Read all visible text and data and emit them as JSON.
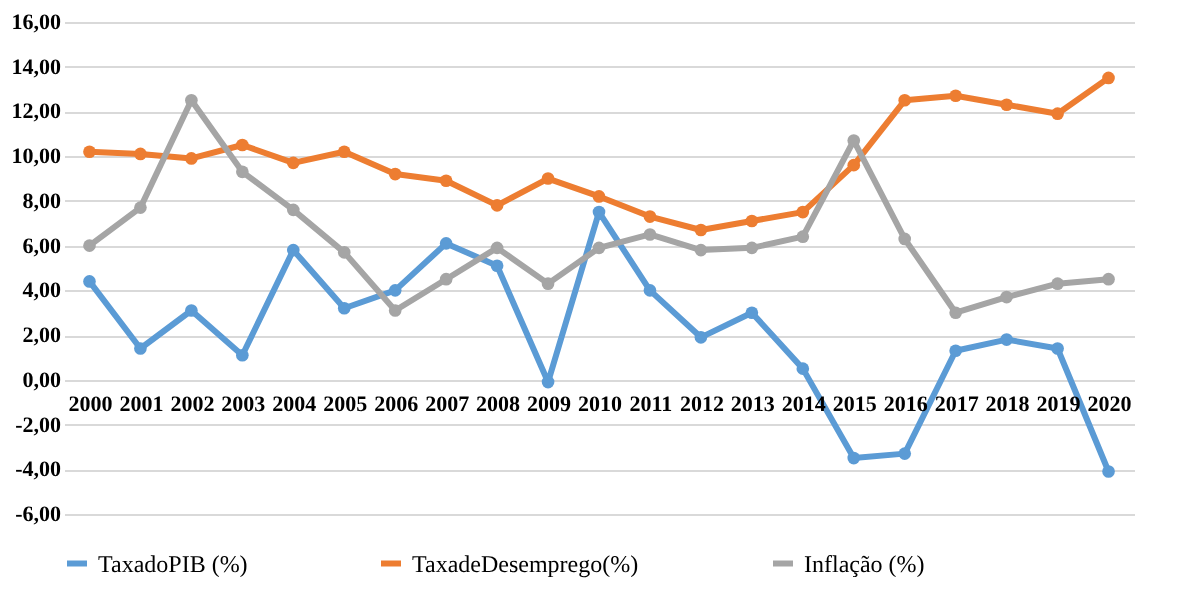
{
  "chart_data": {
    "type": "line",
    "categories": [
      "2000",
      "2001",
      "2002",
      "2003",
      "2004",
      "2005",
      "2006",
      "2007",
      "2008",
      "2009",
      "2010",
      "2011",
      "2012",
      "2013",
      "2014",
      "2015",
      "2016",
      "2017",
      "2018",
      "2019",
      "2020"
    ],
    "series": [
      {
        "name": "TaxadoPIB (%)",
        "color": "#5b9bd5",
        "values": [
          4.4,
          1.4,
          3.1,
          1.1,
          5.8,
          3.2,
          4.0,
          6.1,
          5.1,
          -0.1,
          7.5,
          4.0,
          1.9,
          3.0,
          0.5,
          -3.5,
          -3.3,
          1.3,
          1.8,
          1.4,
          -4.1
        ]
      },
      {
        "name": "TaxadeDesemprego(%)",
        "color": "#ed7d31",
        "values": [
          10.2,
          10.1,
          9.9,
          10.5,
          9.7,
          10.2,
          9.2,
          8.9,
          7.8,
          9.0,
          8.2,
          7.3,
          6.7,
          7.1,
          7.5,
          9.6,
          12.5,
          12.7,
          12.3,
          11.9,
          13.5
        ]
      },
      {
        "name": "Inflação (%)",
        "color": "#a5a5a5",
        "values": [
          6.0,
          7.7,
          12.5,
          9.3,
          7.6,
          5.7,
          3.1,
          4.5,
          5.9,
          4.3,
          5.9,
          6.5,
          5.8,
          5.9,
          6.4,
          10.7,
          6.3,
          3.0,
          3.7,
          4.3,
          4.5
        ]
      }
    ],
    "ylim": [
      -6,
      16
    ],
    "yticks": [
      {
        "value": -6,
        "label": "-6,00"
      },
      {
        "value": -4,
        "label": "-4,00"
      },
      {
        "value": -2,
        "label": "-2,00"
      },
      {
        "value": 0,
        "label": "0,00"
      },
      {
        "value": 2,
        "label": "2,00"
      },
      {
        "value": 4,
        "label": "4,00"
      },
      {
        "value": 6,
        "label": "6,00"
      },
      {
        "value": 8,
        "label": "8,00"
      },
      {
        "value": 10,
        "label": "10,00"
      },
      {
        "value": 12,
        "label": "12,00"
      },
      {
        "value": 14,
        "label": "14,00"
      },
      {
        "value": 16,
        "label": "16,00"
      }
    ],
    "grid": "y",
    "legend": "bottom",
    "marker": "circle",
    "line_style": "solid"
  }
}
